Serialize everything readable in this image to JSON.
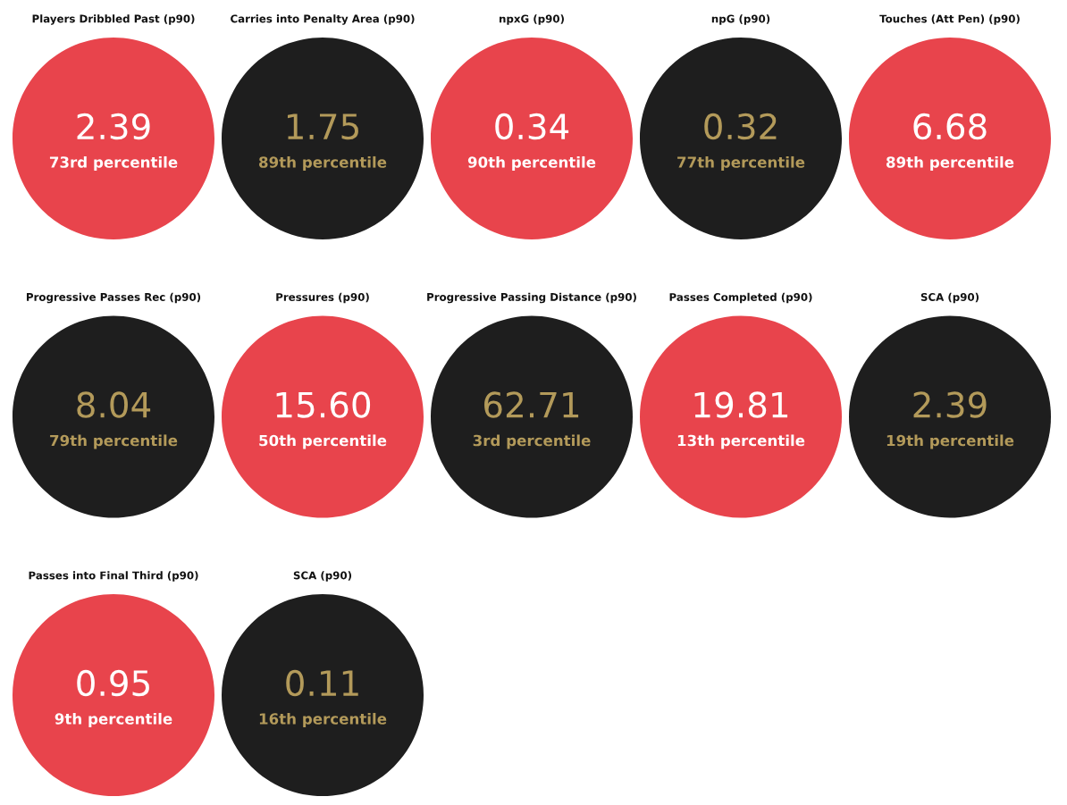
{
  "chart_data": {
    "type": "other",
    "categories": [
      "Players Dribbled Past (p90)",
      "Carries into Penalty Area (p90)",
      "npxG (p90)",
      "npG (p90)",
      "Touches (Att Pen) (p90)",
      "Progressive Passes Rec (p90)",
      "Pressures (p90)",
      "Progressive Passing Distance (p90)",
      "Passes Completed (p90)",
      "SCA (p90)",
      "Passes into Final Third (p90)",
      "SCA (p90)"
    ],
    "values": [
      2.39,
      1.75,
      0.34,
      0.32,
      6.68,
      8.04,
      15.6,
      62.71,
      19.81,
      2.39,
      0.95,
      0.11
    ],
    "value_labels": [
      "2.39",
      "1.75",
      "0.34",
      "0.32",
      "6.68",
      "8.04",
      "15.60",
      "62.71",
      "19.81",
      "2.39",
      "0.95",
      "0.11"
    ],
    "annotations": [
      "73rd percentile",
      "89th percentile",
      "90th percentile",
      "77th percentile",
      "89th percentile",
      "79th percentile",
      "50th percentile",
      "3rd percentile",
      "13th percentile",
      "19th percentile",
      "9th percentile",
      "16th percentile"
    ],
    "colors": [
      "#e8444c",
      "#1e1e1e",
      "#e8444c",
      "#1e1e1e",
      "#e8444c",
      "#1e1e1e",
      "#e8444c",
      "#1e1e1e",
      "#e8444c",
      "#1e1e1e",
      "#e8444c",
      "#1e1e1e"
    ]
  }
}
